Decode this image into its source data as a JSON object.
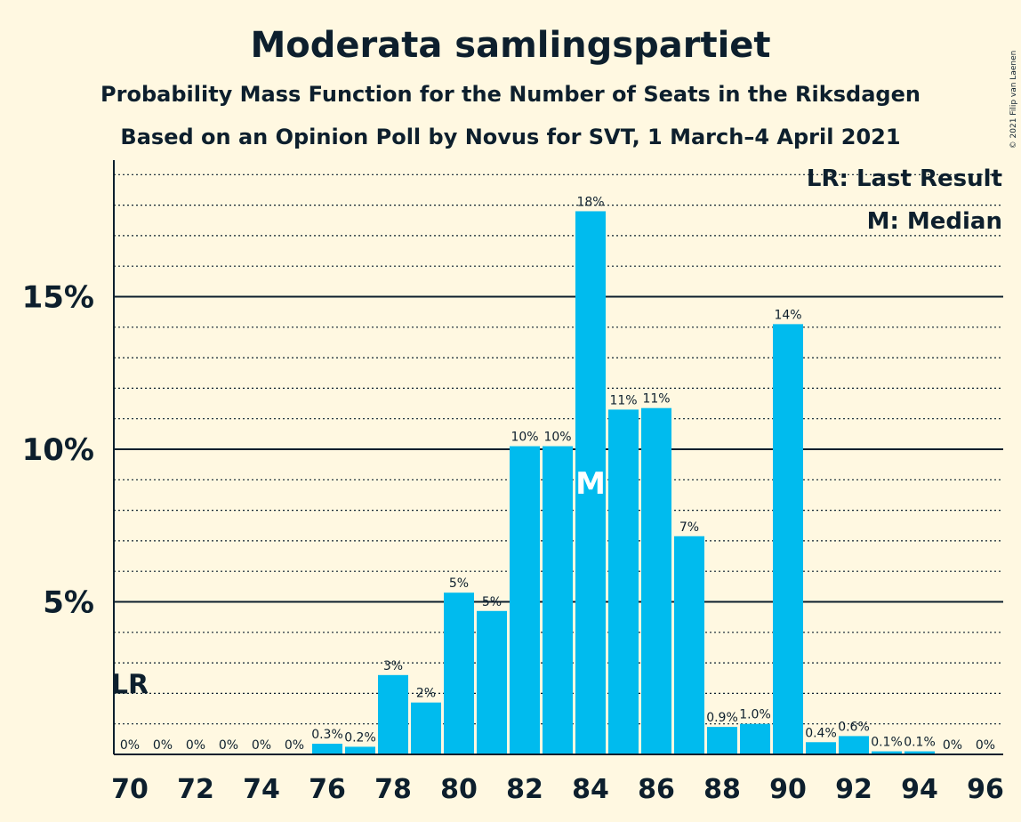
{
  "chart_data": {
    "type": "bar",
    "title": "Moderata samlingspartiet",
    "subtitle_1": "Probability Mass Function for the Number of Seats in the Riksdagen",
    "subtitle_2": "Based on an Opinion Poll by Novus for SVT, 1 March–4 April 2021",
    "copyright": "© 2021 Filip van Laenen",
    "legend": {
      "last_result": "LR: Last Result",
      "median": "M: Median",
      "placement": "top-right"
    },
    "markers": {
      "last_result_seat": 70,
      "last_result_label": "LR",
      "median_seat": 84,
      "median_label": "M"
    },
    "x": [
      70,
      71,
      72,
      73,
      74,
      75,
      76,
      77,
      78,
      79,
      80,
      81,
      82,
      83,
      84,
      85,
      86,
      87,
      88,
      89,
      90,
      91,
      92,
      93,
      94,
      95,
      96
    ],
    "values": [
      0,
      0,
      0,
      0,
      0,
      0,
      0.35,
      0.25,
      2.6,
      1.7,
      5.3,
      4.7,
      10.1,
      10.1,
      17.8,
      11.3,
      11.35,
      7.15,
      0.9,
      1.0,
      14.1,
      0.4,
      0.6,
      0.1,
      0.1,
      0,
      0
    ],
    "labels": [
      "0%",
      "0%",
      "0%",
      "0%",
      "0%",
      "0%",
      "0.3%",
      "0.2%",
      "3%",
      "2%",
      "5%",
      "5%",
      "10%",
      "10%",
      "18%",
      "11%",
      "11%",
      "7%",
      "0.9%",
      "1.0%",
      "14%",
      "0.4%",
      "0.6%",
      "0.1%",
      "0.1%",
      "0%",
      "0%"
    ],
    "x_tick_labels": [
      "70",
      "72",
      "74",
      "76",
      "78",
      "80",
      "82",
      "84",
      "86",
      "88",
      "90",
      "92",
      "94",
      "96"
    ],
    "y_ticks": [
      {
        "value": 5,
        "label": "5%"
      },
      {
        "value": 10,
        "label": "10%"
      },
      {
        "value": 15,
        "label": "15%"
      }
    ],
    "ylim": [
      0,
      19.5
    ],
    "grid": "dotted every 1%, solid every 5%",
    "colors": {
      "bar": "#00bbee",
      "background": "#fff8e1",
      "text": "#0d1f2d"
    }
  }
}
